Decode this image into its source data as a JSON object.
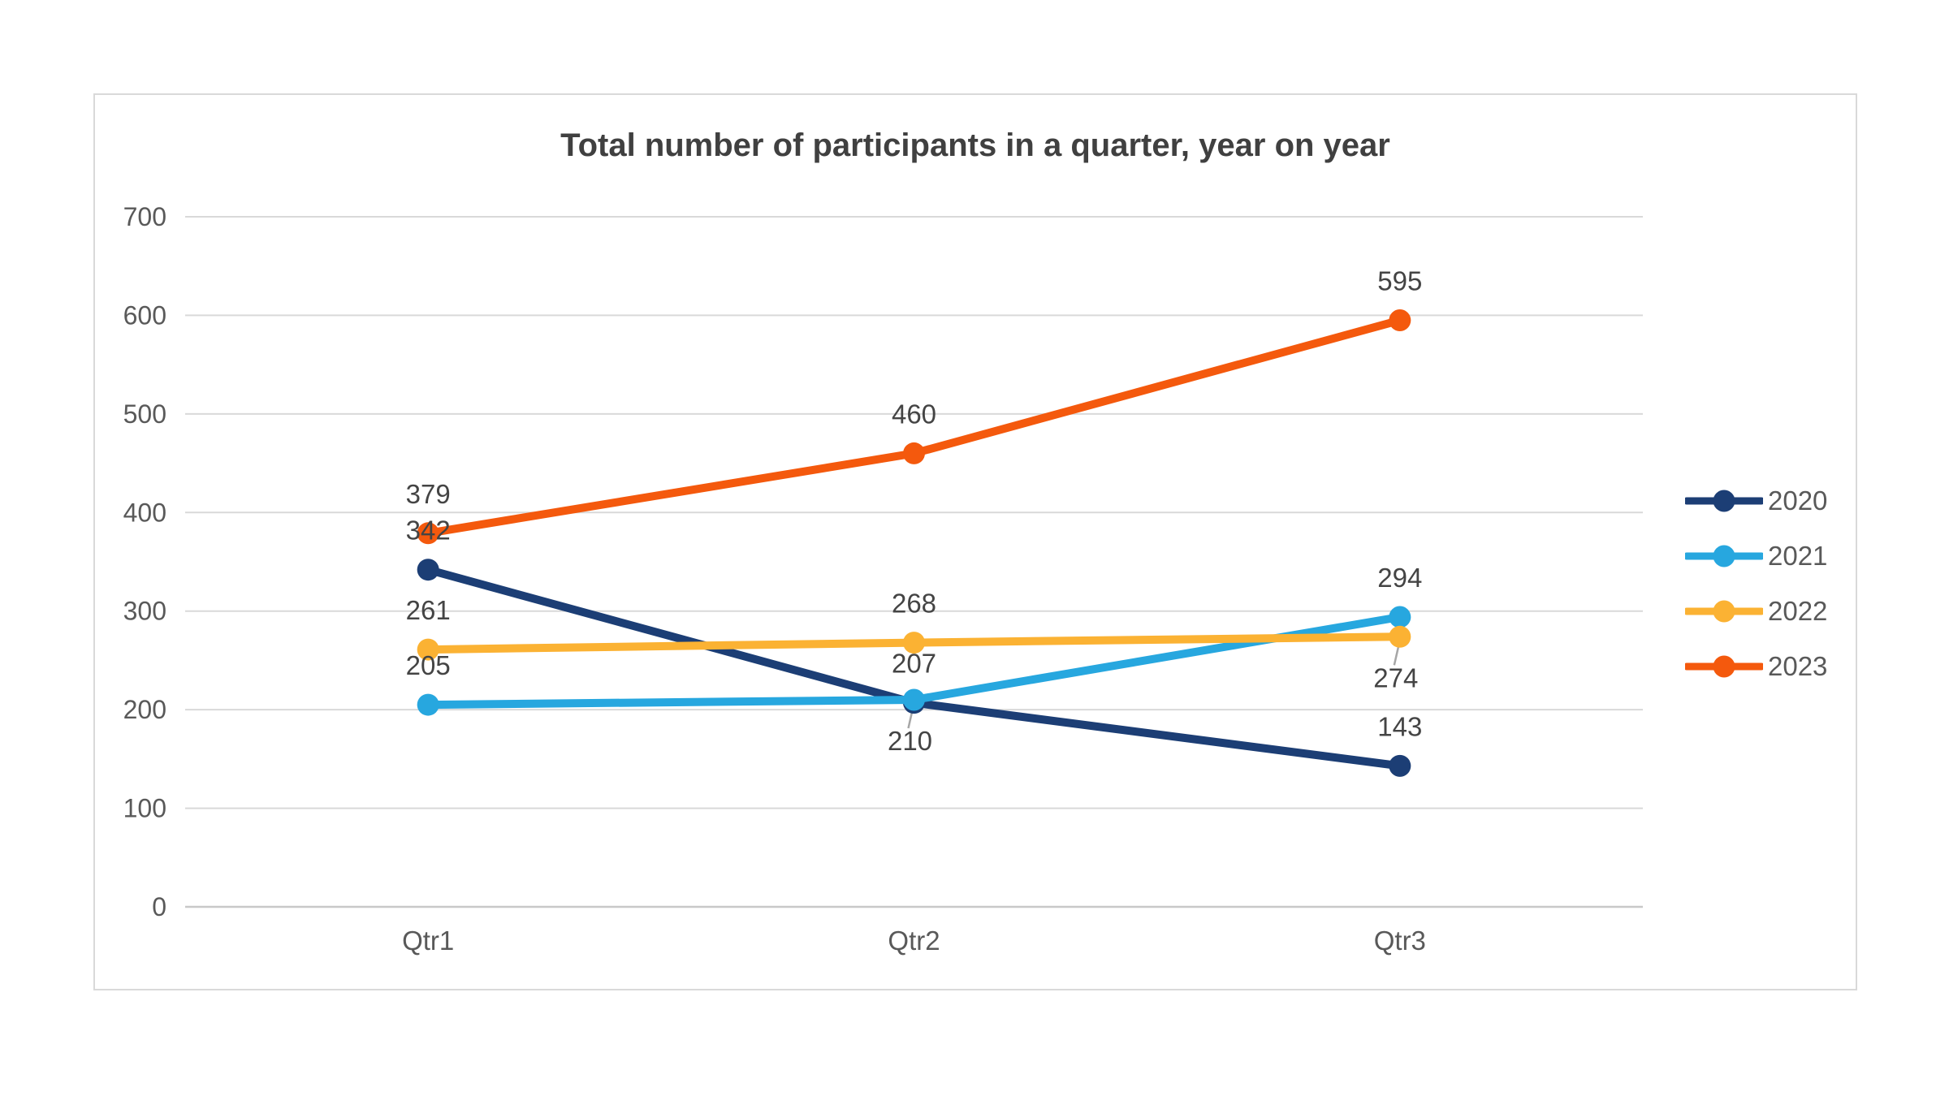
{
  "chart_data": {
    "type": "line",
    "title": "Total number of participants in a quarter, year on year",
    "categories": [
      "Qtr1",
      "Qtr2",
      "Qtr3"
    ],
    "series": [
      {
        "name": "2020",
        "color": "#1C3E75",
        "values": [
          342,
          207,
          143
        ],
        "label_positions": [
          "above",
          "above",
          "above"
        ]
      },
      {
        "name": "2021",
        "color": "#27A7DF",
        "values": [
          205,
          210,
          294
        ],
        "label_positions": [
          "above",
          "below-leader",
          "above"
        ]
      },
      {
        "name": "2022",
        "color": "#FBB233",
        "values": [
          261,
          268,
          274
        ],
        "label_positions": [
          "above",
          "above",
          "below-leader"
        ]
      },
      {
        "name": "2023",
        "color": "#F4590D",
        "values": [
          379,
          460,
          595
        ],
        "label_positions": [
          "above",
          "above",
          "above"
        ]
      }
    ],
    "y_axis": {
      "min": 0,
      "max": 700,
      "step": 100,
      "tick_labels": [
        "700",
        "600",
        "500",
        "400",
        "300",
        "200",
        "100",
        "0"
      ]
    },
    "legend": {
      "position": "right",
      "entries": [
        "2020",
        "2021",
        "2022",
        "2023"
      ]
    },
    "grid": true
  },
  "colors": {
    "page_background": "#FFFFFF",
    "card_background": "#FFFFFF",
    "card_border": "#D9D9D9",
    "gridline": "#D9D9D9",
    "axis_line": "#C8C8C8",
    "title_text": "#404040",
    "data_label_text": "#444444",
    "tick_text": "#595959",
    "legend_text": "#595959",
    "leader_line": "#A6A6A6"
  }
}
